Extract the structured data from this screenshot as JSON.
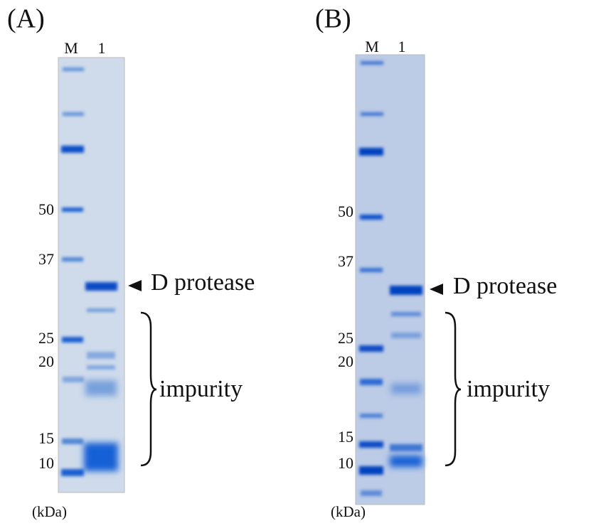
{
  "panels": [
    {
      "label": "(A)",
      "lanes": [
        "M",
        "1"
      ],
      "markers": [
        "50",
        "37",
        "25",
        "20",
        "15",
        "10"
      ],
      "unit": "(kDa)",
      "target": "D protease",
      "impurity": "impurity"
    },
    {
      "label": "(B)",
      "lanes": [
        "M",
        "1"
      ],
      "markers": [
        "50",
        "37",
        "25",
        "20",
        "15",
        "10"
      ],
      "unit": "(kDa)",
      "target": "D protease",
      "impurity": "impurity"
    }
  ]
}
